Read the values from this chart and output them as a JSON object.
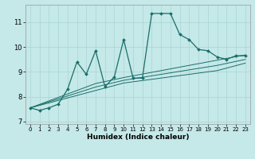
{
  "xlabel": "Humidex (Indice chaleur)",
  "ylabel": "",
  "bg_color": "#c5e8e8",
  "grid_color": "#aad4d4",
  "line_color": "#1a6e6a",
  "x_data": [
    0,
    1,
    2,
    3,
    4,
    5,
    6,
    7,
    8,
    9,
    10,
    11,
    12,
    13,
    14,
    15,
    16,
    17,
    18,
    19,
    20,
    21,
    22,
    23
  ],
  "y_main": [
    7.55,
    7.45,
    7.55,
    7.7,
    8.3,
    9.4,
    8.9,
    9.85,
    8.4,
    8.8,
    10.3,
    8.75,
    8.75,
    11.35,
    11.35,
    11.35,
    10.5,
    10.3,
    9.9,
    9.85,
    9.6,
    9.5,
    9.65,
    9.65
  ],
  "y_reg1": [
    7.55,
    7.65,
    7.75,
    7.85,
    7.95,
    8.05,
    8.15,
    8.25,
    8.35,
    8.45,
    8.55,
    8.6,
    8.65,
    8.7,
    8.75,
    8.8,
    8.85,
    8.9,
    8.95,
    9.0,
    9.05,
    9.15,
    9.25,
    9.35
  ],
  "y_reg2": [
    7.55,
    7.67,
    7.79,
    7.91,
    8.03,
    8.15,
    8.27,
    8.39,
    8.48,
    8.57,
    8.66,
    8.72,
    8.78,
    8.84,
    8.9,
    8.96,
    9.02,
    9.08,
    9.14,
    9.2,
    9.26,
    9.34,
    9.42,
    9.5
  ],
  "y_reg3": [
    7.55,
    7.69,
    7.83,
    7.97,
    8.11,
    8.25,
    8.39,
    8.53,
    8.61,
    8.69,
    8.77,
    8.84,
    8.91,
    8.98,
    9.05,
    9.12,
    9.19,
    9.26,
    9.33,
    9.4,
    9.47,
    9.54,
    9.61,
    9.68
  ],
  "ylim": [
    6.9,
    11.7
  ],
  "xlim": [
    -0.5,
    23.5
  ],
  "yticks": [
    7,
    8,
    9,
    10,
    11
  ],
  "xticks": [
    0,
    1,
    2,
    3,
    4,
    5,
    6,
    7,
    8,
    9,
    10,
    11,
    12,
    13,
    14,
    15,
    16,
    17,
    18,
    19,
    20,
    21,
    22,
    23
  ]
}
